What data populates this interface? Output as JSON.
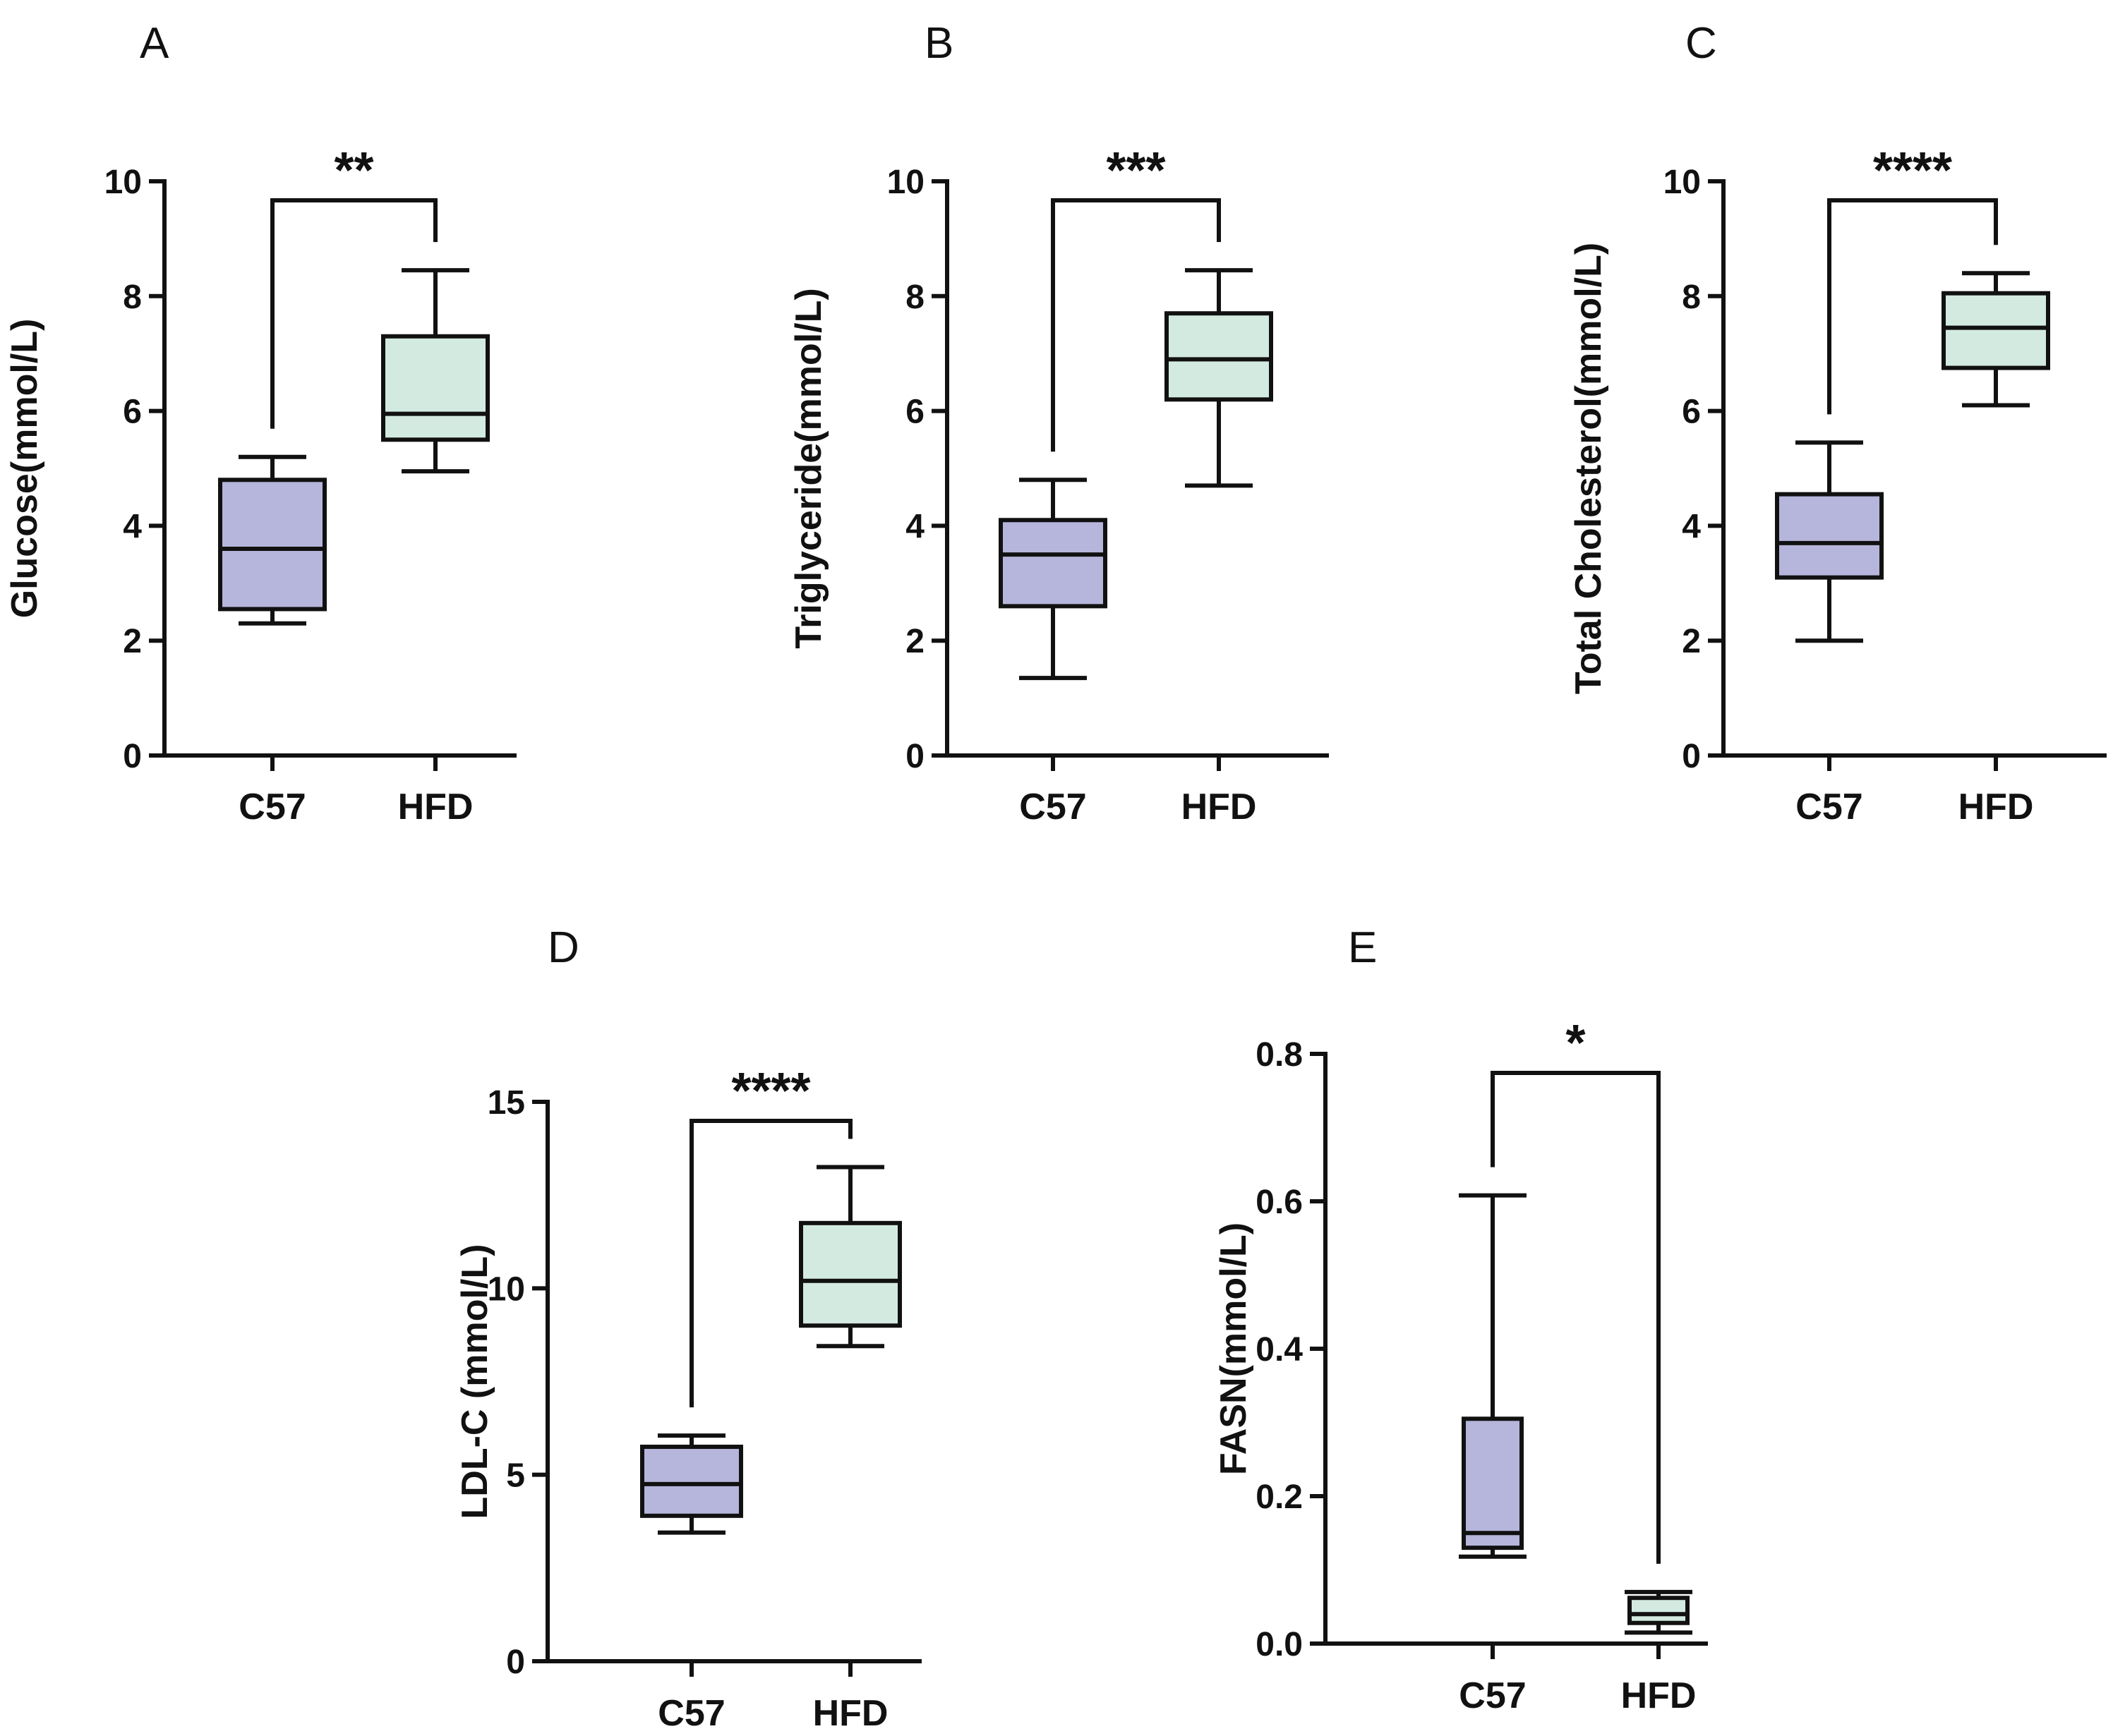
{
  "colors": {
    "c57_fill": "#b6b6dc",
    "hfd_fill": "#d3eae1",
    "ink": "#111111"
  },
  "chart_data": [
    {
      "panel": "A",
      "type": "box",
      "ylabel": "Glucose(mmol/L)",
      "ylim": [
        0,
        10
      ],
      "yticks": [
        "0",
        "2",
        "4",
        "6",
        "8",
        "10"
      ],
      "categories": [
        "C57",
        "HFD"
      ],
      "boxes": [
        {
          "group": "C57",
          "min": 2.3,
          "q1": 2.55,
          "median": 3.6,
          "q3": 4.8,
          "max": 5.2
        },
        {
          "group": "HFD",
          "min": 4.95,
          "q1": 5.5,
          "median": 5.95,
          "q3": 7.3,
          "max": 8.45
        }
      ],
      "significance": "**"
    },
    {
      "panel": "B",
      "type": "box",
      "ylabel": "Triglyceride(mmol/L)",
      "ylim": [
        0,
        10
      ],
      "yticks": [
        "0",
        "2",
        "4",
        "6",
        "8",
        "10"
      ],
      "categories": [
        "C57",
        "HFD"
      ],
      "boxes": [
        {
          "group": "C57",
          "min": 1.35,
          "q1": 2.6,
          "median": 3.5,
          "q3": 4.1,
          "max": 4.8
        },
        {
          "group": "HFD",
          "min": 4.7,
          "q1": 6.2,
          "median": 6.9,
          "q3": 7.7,
          "max": 8.45
        }
      ],
      "significance": "***"
    },
    {
      "panel": "C",
      "type": "box",
      "ylabel": "Total Cholesterol(mmol/L)",
      "ylim": [
        0,
        10
      ],
      "yticks": [
        "0",
        "2",
        "4",
        "6",
        "8",
        "10"
      ],
      "categories": [
        "C57",
        "HFD"
      ],
      "boxes": [
        {
          "group": "C57",
          "min": 2.0,
          "q1": 3.1,
          "median": 3.7,
          "q3": 4.55,
          "max": 5.45
        },
        {
          "group": "HFD",
          "min": 6.1,
          "q1": 6.75,
          "median": 7.45,
          "q3": 8.05,
          "max": 8.4
        }
      ],
      "significance": "****"
    },
    {
      "panel": "D",
      "type": "box",
      "ylabel": "LDL-C (mmol/L)",
      "ylim": [
        0,
        15
      ],
      "yticks": [
        "0",
        "5",
        "10",
        "15"
      ],
      "categories": [
        "C57",
        "HFD"
      ],
      "boxes": [
        {
          "group": "C57",
          "min": 3.45,
          "q1": 3.9,
          "median": 4.75,
          "q3": 5.75,
          "max": 6.05
        },
        {
          "group": "HFD",
          "min": 8.45,
          "q1": 9.0,
          "median": 10.2,
          "q3": 11.75,
          "max": 13.25
        }
      ],
      "significance": "****"
    },
    {
      "panel": "E",
      "type": "box",
      "ylabel": "FASN(mmol/L)",
      "ylim": [
        0,
        0.8
      ],
      "yticks": [
        "0.0",
        "0.2",
        "0.4",
        "0.6",
        "0.8"
      ],
      "categories": [
        "C57",
        "HFD"
      ],
      "boxes": [
        {
          "group": "C57",
          "min": 0.118,
          "q1": 0.13,
          "median": 0.15,
          "q3": 0.305,
          "max": 0.608
        },
        {
          "group": "HFD",
          "min": 0.015,
          "q1": 0.028,
          "median": 0.04,
          "q3": 0.062,
          "max": 0.07
        }
      ],
      "significance": "*"
    }
  ]
}
